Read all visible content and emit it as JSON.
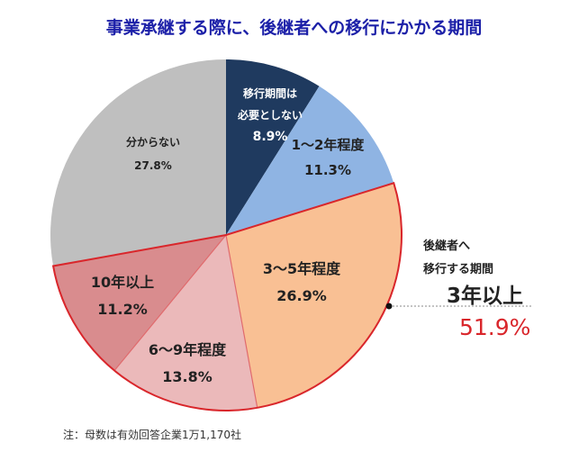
{
  "chart_data": {
    "type": "pie",
    "title": "事業承継する際に、後継者への移行にかかる期間",
    "start": "top",
    "direction": "clockwise",
    "slices": [
      {
        "label_lines": [
          "移行期間は",
          "必要としない"
        ],
        "value": 8.9,
        "value_label": "8.9%",
        "color": "#1f3a5f",
        "text_color": "#ffffff"
      },
      {
        "label_lines": [
          "1～2年程度"
        ],
        "value": 11.3,
        "value_label": "11.3%",
        "color": "#8fb4e3",
        "text_color": "#222222"
      },
      {
        "label_lines": [
          "3～5年程度"
        ],
        "value": 26.9,
        "value_label": "26.9%",
        "color": "#f9c094",
        "text_color": "#222222"
      },
      {
        "label_lines": [
          "6～9年程度"
        ],
        "value": 13.8,
        "value_label": "13.8%",
        "color": "#ebb9ba",
        "text_color": "#222222"
      },
      {
        "label_lines": [
          "10年以上"
        ],
        "value": 11.2,
        "value_label": "11.2%",
        "color": "#d98c8e",
        "text_color": "#222222"
      },
      {
        "label_lines": [
          "分からない"
        ],
        "value": 27.8,
        "value_label": "27.8%",
        "color": "#bfbfbf",
        "text_color": "#222222"
      }
    ],
    "highlight_group": {
      "slices": [
        2,
        3,
        4
      ],
      "outline_color": "#d9262b",
      "caption_lines": [
        "後継者へ",
        "移行する期間"
      ],
      "label": "3年以上",
      "value_label": "51.9%",
      "value_color": "#d9262b"
    },
    "note": "注：母数は有効回答企業1万1,170社"
  }
}
